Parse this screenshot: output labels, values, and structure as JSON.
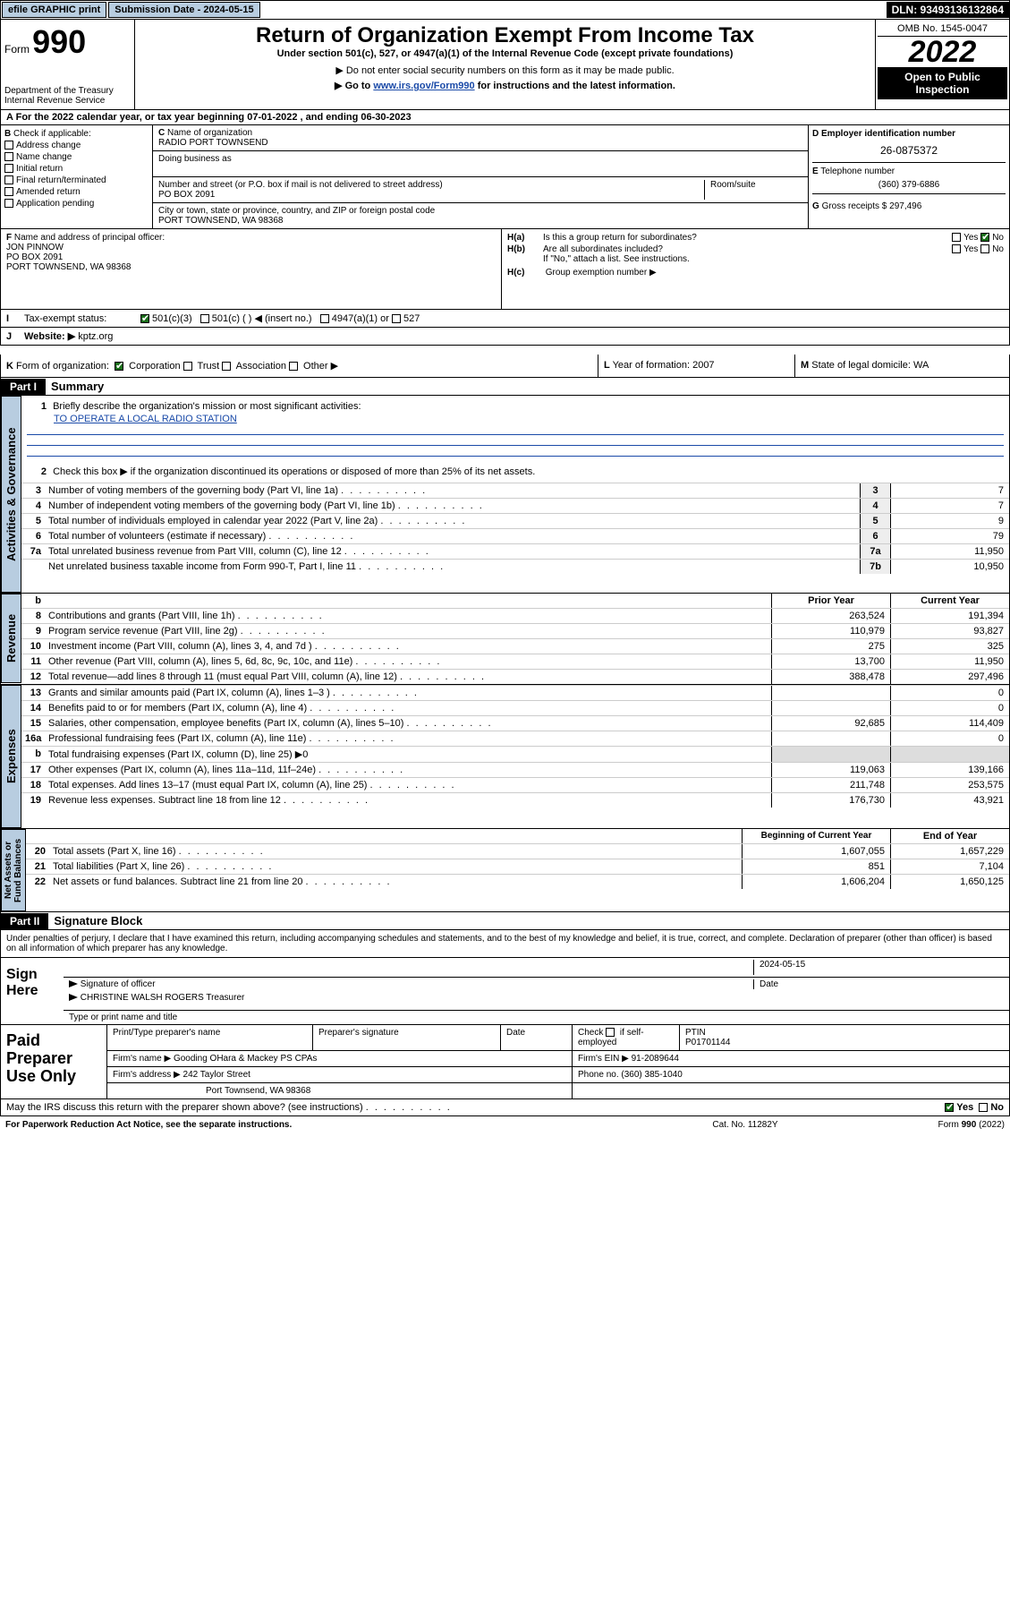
{
  "topbar": {
    "efile": "efile GRAPHIC print",
    "sub_label": "Submission Date - 2024-05-15",
    "dln": "DLN: 93493136132864"
  },
  "header": {
    "form_word": "Form",
    "form_no": "990",
    "dept": "Department of the Treasury",
    "irs": "Internal Revenue Service",
    "title": "Return of Organization Exempt From Income Tax",
    "sub1": "Under section 501(c), 527, or 4947(a)(1) of the Internal Revenue Code (except private foundations)",
    "sub2": "▶ Do not enter social security numbers on this form as it may be made public.",
    "sub3_pre": "▶ Go to ",
    "sub3_link": "www.irs.gov/Form990",
    "sub3_post": " for instructions and the latest information.",
    "omb": "OMB No. 1545-0047",
    "year": "2022",
    "open": "Open to Public Inspection"
  },
  "periodA": "For the 2022 calendar year, or tax year beginning 07-01-2022   , and ending 06-30-2023",
  "boxB": {
    "label": "Check if applicable:",
    "items": [
      "Address change",
      "Name change",
      "Initial return",
      "Final return/terminated",
      "Amended return",
      "Application pending"
    ]
  },
  "boxC": {
    "label": "Name of organization",
    "name": "RADIO PORT TOWNSEND",
    "dba_label": "Doing business as",
    "addr_label": "Number and street (or P.O. box if mail is not delivered to street address)",
    "room_label": "Room/suite",
    "addr": "PO BOX 2091",
    "city_label": "City or town, state or province, country, and ZIP or foreign postal code",
    "city": "PORT TOWNSEND, WA  98368"
  },
  "boxD": {
    "label": "Employer identification number",
    "ein": "26-0875372"
  },
  "boxE": {
    "label": "Telephone number",
    "phone": "(360) 379-6886"
  },
  "boxG": {
    "label": "Gross receipts $",
    "val": "297,496"
  },
  "boxF": {
    "label": "Name and address of principal officer:",
    "name": "JON PINNOW",
    "addr": "PO BOX 2091",
    "city": "PORT TOWNSEND, WA  98368"
  },
  "boxH": {
    "a": "Is this a group return for subordinates?",
    "b": "Are all subordinates included?",
    "hint": "If \"No,\" attach a list. See instructions.",
    "c": "Group exemption number ▶",
    "yes": "Yes",
    "no": "No"
  },
  "rowI": {
    "label": "Tax-exempt status:",
    "c1": "501(c)(3)",
    "c2": "501(c) (  ) ◀ (insert no.)",
    "c3": "4947(a)(1) or",
    "c4": "527"
  },
  "rowJ": {
    "label": "Website: ▶",
    "val": "kptz.org"
  },
  "rowK": {
    "k1_label": "Form of organization:",
    "k1_opts": [
      "Corporation",
      "Trust",
      "Association",
      "Other ▶"
    ],
    "k2_label": "Year of formation:",
    "k2_val": "2007",
    "k3_label": "State of legal domicile:",
    "k3_val": "WA"
  },
  "parts": {
    "p1": "Part I",
    "p1_title": "Summary",
    "p2": "Part II",
    "p2_title": "Signature Block"
  },
  "summary": {
    "l1": "Briefly describe the organization's mission or most significant activities:",
    "mission": "TO OPERATE A LOCAL RADIO STATION",
    "l2": "Check this box ▶      if the organization discontinued its operations or disposed of more than 25% of its net assets.",
    "lines": [
      {
        "n": "3",
        "d": "Number of voting members of the governing body (Part VI, line 1a)",
        "nc": "3",
        "v": "7"
      },
      {
        "n": "4",
        "d": "Number of independent voting members of the governing body (Part VI, line 1b)",
        "nc": "4",
        "v": "7"
      },
      {
        "n": "5",
        "d": "Total number of individuals employed in calendar year 2022 (Part V, line 2a)",
        "nc": "5",
        "v": "9"
      },
      {
        "n": "6",
        "d": "Total number of volunteers (estimate if necessary)",
        "nc": "6",
        "v": "79"
      },
      {
        "n": "7a",
        "d": "Total unrelated business revenue from Part VIII, column (C), line 12",
        "nc": "7a",
        "v": "11,950"
      },
      {
        "n": "",
        "d": "Net unrelated business taxable income from Form 990-T, Part I, line 11",
        "nc": "7b",
        "v": "10,950"
      }
    ],
    "h_prior": "Prior Year",
    "h_curr": "Current Year",
    "rev": [
      {
        "n": "8",
        "d": "Contributions and grants (Part VIII, line 1h)",
        "p": "263,524",
        "c": "191,394"
      },
      {
        "n": "9",
        "d": "Program service revenue (Part VIII, line 2g)",
        "p": "110,979",
        "c": "93,827"
      },
      {
        "n": "10",
        "d": "Investment income (Part VIII, column (A), lines 3, 4, and 7d )",
        "p": "275",
        "c": "325"
      },
      {
        "n": "11",
        "d": "Other revenue (Part VIII, column (A), lines 5, 6d, 8c, 9c, 10c, and 11e)",
        "p": "13,700",
        "c": "11,950"
      },
      {
        "n": "12",
        "d": "Total revenue—add lines 8 through 11 (must equal Part VIII, column (A), line 12)",
        "p": "388,478",
        "c": "297,496"
      }
    ],
    "exp": [
      {
        "n": "13",
        "d": "Grants and similar amounts paid (Part IX, column (A), lines 1–3 )",
        "p": "",
        "c": "0"
      },
      {
        "n": "14",
        "d": "Benefits paid to or for members (Part IX, column (A), line 4)",
        "p": "",
        "c": "0"
      },
      {
        "n": "15",
        "d": "Salaries, other compensation, employee benefits (Part IX, column (A), lines 5–10)",
        "p": "92,685",
        "c": "114,409"
      },
      {
        "n": "16a",
        "d": "Professional fundraising fees (Part IX, column (A), line 11e)",
        "p": "",
        "c": "0"
      },
      {
        "n": "b",
        "d": "Total fundraising expenses (Part IX, column (D), line 25) ▶0",
        "p": "shade",
        "c": "shade"
      },
      {
        "n": "17",
        "d": "Other expenses (Part IX, column (A), lines 11a–11d, 11f–24e)",
        "p": "119,063",
        "c": "139,166"
      },
      {
        "n": "18",
        "d": "Total expenses. Add lines 13–17 (must equal Part IX, column (A), line 25)",
        "p": "211,748",
        "c": "253,575"
      },
      {
        "n": "19",
        "d": "Revenue less expenses. Subtract line 18 from line 12",
        "p": "176,730",
        "c": "43,921"
      }
    ],
    "h_beg": "Beginning of Current Year",
    "h_end": "End of Year",
    "net": [
      {
        "n": "20",
        "d": "Total assets (Part X, line 16)",
        "p": "1,607,055",
        "c": "1,657,229"
      },
      {
        "n": "21",
        "d": "Total liabilities (Part X, line 26)",
        "p": "851",
        "c": "7,104"
      },
      {
        "n": "22",
        "d": "Net assets or fund balances. Subtract line 21 from line 20",
        "p": "1,606,204",
        "c": "1,650,125"
      }
    ],
    "tabs": {
      "gov": "Activities & Governance",
      "rev": "Revenue",
      "exp": "Expenses",
      "net": "Net Assets or Fund Balances"
    }
  },
  "sig": {
    "penalty": "Under penalties of perjury, I declare that I have examined this return, including accompanying schedules and statements, and to the best of my knowledge and belief, it is true, correct, and complete. Declaration of preparer (other than officer) is based on all information of which preparer has any knowledge.",
    "sign_here": "Sign Here",
    "sig_label": "Signature of officer",
    "date_label": "Date",
    "date": "2024-05-15",
    "name": "CHRISTINE WALSH ROGERS Treasurer",
    "name_label": "Type or print name and title"
  },
  "prep": {
    "label": "Paid Preparer Use Only",
    "h1": "Print/Type preparer's name",
    "h2": "Preparer's signature",
    "h3": "Date",
    "h4_pre": "Check",
    "h4_post": "if self-employed",
    "ptin_l": "PTIN",
    "ptin": "P01701144",
    "firm_l": "Firm's name   ▶",
    "firm": "Gooding OHara & Mackey PS CPAs",
    "ein_l": "Firm's EIN ▶",
    "ein": "91-2089644",
    "addr_l": "Firm's address ▶",
    "addr1": "242 Taylor Street",
    "addr2": "Port Townsend, WA  98368",
    "phone_l": "Phone no.",
    "phone": "(360) 385-1040"
  },
  "may": {
    "q": "May the IRS discuss this return with the preparer shown above? (see instructions)",
    "yes": "Yes",
    "no": "No"
  },
  "footer": {
    "f1": "For Paperwork Reduction Act Notice, see the separate instructions.",
    "f2": "Cat. No. 11282Y",
    "f3_a": "Form ",
    "f3_b": "990",
    "f3_c": " (2022)"
  },
  "letters": {
    "A": "A",
    "B": "B",
    "C": "C",
    "D": "D",
    "E": "E",
    "F": "F",
    "G": "G",
    "H(a)": "H(a)",
    "H(b)": "H(b)",
    "H(c)": "H(c)",
    "I": "I",
    "J": "J",
    "K": "K",
    "L": "L",
    "M": "M"
  },
  "small": {
    "b": "b",
    "one": "1",
    "two": "2"
  }
}
